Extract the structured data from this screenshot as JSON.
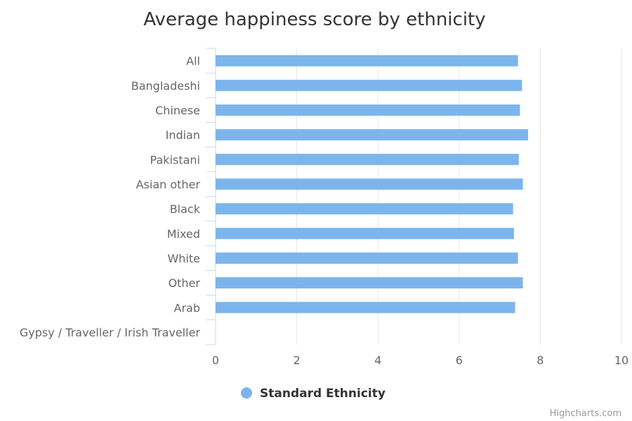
{
  "chart_data": {
    "type": "bar",
    "orientation": "horizontal",
    "title": "Average happiness score by ethnicity",
    "categories": [
      "All",
      "Bangladeshi",
      "Chinese",
      "Indian",
      "Pakistani",
      "Asian other",
      "Black",
      "Mixed",
      "White",
      "Other",
      "Arab",
      "Gypsy / Traveller / Irish Traveller"
    ],
    "series": [
      {
        "name": "Standard Ethnicity",
        "color": "#7cb5ec",
        "values": [
          7.45,
          7.55,
          7.5,
          7.7,
          7.47,
          7.57,
          7.33,
          7.35,
          7.45,
          7.57,
          7.38,
          null
        ]
      }
    ],
    "xlim": [
      0,
      10
    ],
    "ticks": [
      "0",
      "2",
      "4",
      "6",
      "8",
      "10"
    ],
    "grid": true,
    "legend_position": "bottom-center"
  },
  "credits": "Highcharts.com"
}
